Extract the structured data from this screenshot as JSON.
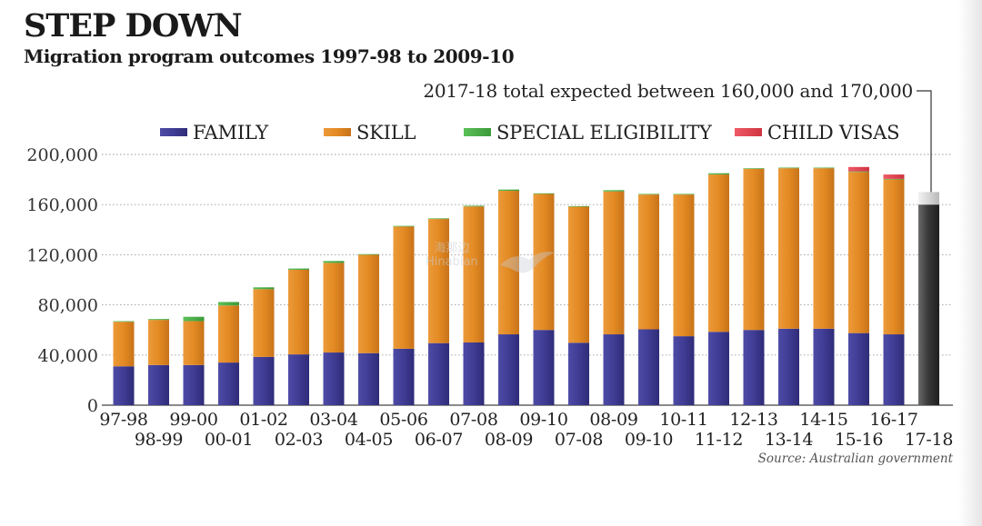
{
  "header": {
    "title": "STEP DOWN",
    "subtitle": "Migration program outcomes 1997-98 to 2009-10"
  },
  "source": "Source: Australian government",
  "watermark": {
    "line1": "海那边",
    "line2": "Hinabian"
  },
  "chart_data": {
    "type": "bar",
    "stacked": true,
    "title": "Migration program outcomes 1997-98 to 2009-10",
    "xlabel": "",
    "ylabel": "",
    "ylim": [
      0,
      200000
    ],
    "yticks": [
      0,
      40000,
      80000,
      120000,
      160000,
      200000
    ],
    "ytick_labels": [
      "0",
      "40,000",
      "80,000",
      "120,000",
      "160,000",
      "200,000"
    ],
    "grid": true,
    "legend_position": "top",
    "categories": [
      "97-98",
      "98-99",
      "99-00",
      "00-01",
      "01-02",
      "02-03",
      "03-04",
      "04-05",
      "05-06",
      "06-07",
      "07-08",
      "08-09",
      "09-10",
      "07-08",
      "08-09",
      "09-10",
      "10-11",
      "11-12",
      "12-13",
      "13-14",
      "14-15",
      "15-16",
      "16-17",
      "17-18"
    ],
    "series": [
      {
        "name": "FAMILY",
        "color": "#3f3c94",
        "values": [
          31000,
          32000,
          32000,
          34000,
          38500,
          40500,
          42000,
          41500,
          45000,
          49500,
          50000,
          56500,
          60000,
          49800,
          56500,
          60500,
          55000,
          58500,
          60000,
          61000,
          61000,
          57500,
          56500,
          0
        ]
      },
      {
        "name": "SKILL",
        "color": "#e38a23",
        "values": [
          35500,
          36000,
          35000,
          45500,
          54000,
          67500,
          71500,
          78500,
          97500,
          99000,
          108500,
          114500,
          108500,
          108500,
          114000,
          107500,
          113000,
          125500,
          128500,
          128000,
          128000,
          128500,
          123500,
          0
        ]
      },
      {
        "name": "SPECIAL ELIGIBILITY",
        "color": "#48ad45",
        "values": [
          500,
          700,
          3500,
          2800,
          1500,
          1000,
          1500,
          500,
          500,
          500,
          600,
          1000,
          500,
          500,
          1000,
          500,
          500,
          1000,
          500,
          500,
          500,
          500,
          500,
          0
        ]
      },
      {
        "name": "CHILD VISAS",
        "color": "#e3414e",
        "values": [
          0,
          0,
          0,
          0,
          0,
          0,
          0,
          0,
          0,
          0,
          0,
          0,
          0,
          0,
          0,
          0,
          0,
          0,
          0,
          0,
          0,
          3500,
          3500,
          0
        ]
      }
    ],
    "projection": {
      "category": "17-18",
      "low": 160000,
      "high": 170000,
      "color": "#3a3a3a",
      "note": "2017-18 total expected between 160,000 and 170,000"
    }
  }
}
